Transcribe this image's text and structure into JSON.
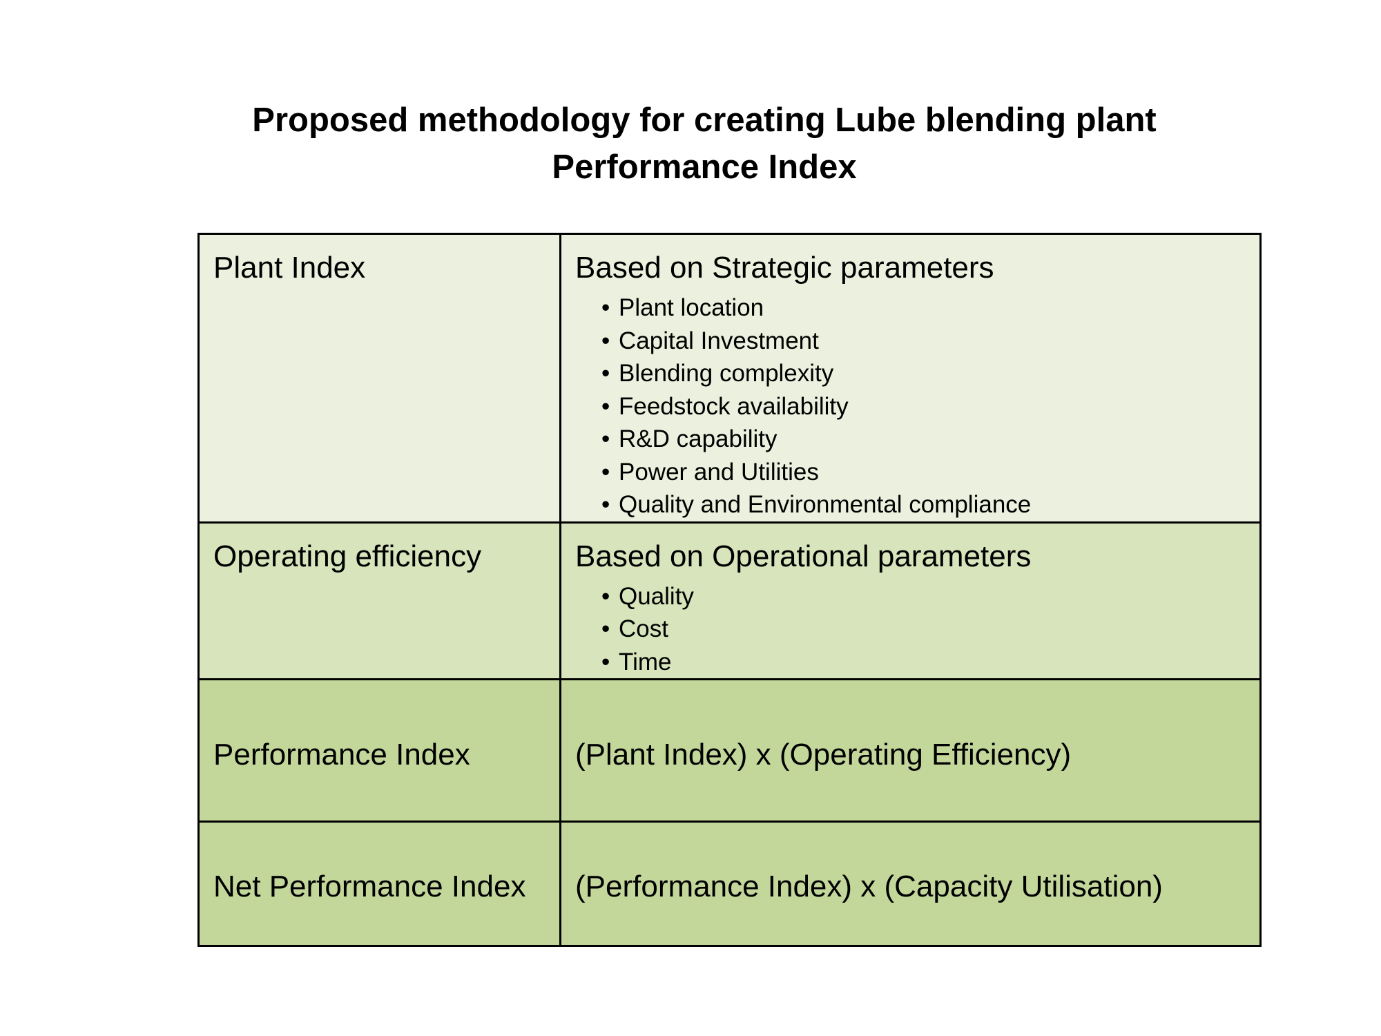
{
  "title": {
    "line1": "Proposed methodology for creating Lube blending plant",
    "line2": "Performance Index"
  },
  "table": {
    "rows": [
      {
        "label": "Plant Index",
        "heading": "Based on Strategic parameters",
        "bullets": [
          "Plant location",
          "Capital Investment",
          "Blending complexity",
          "Feedstock availability",
          "R&D capability",
          "Power and Utilities",
          "Quality and Environmental compliance"
        ]
      },
      {
        "label": "Operating efficiency",
        "heading": "Based on Operational parameters",
        "bullets": [
          "Quality",
          "Cost",
          "Time"
        ]
      },
      {
        "label": "Performance Index",
        "formula": "(Plant Index) x (Operating Efficiency)"
      },
      {
        "label": "Net Performance Index",
        "formula": "(Performance Index) x (Capacity Utilisation)"
      }
    ]
  },
  "colors": {
    "row1_bg": "#ebf1de",
    "row2_bg": "#d8e4bc",
    "row3_bg": "#c4d79b",
    "row4_bg": "#c4d79b",
    "border": "#000000"
  }
}
